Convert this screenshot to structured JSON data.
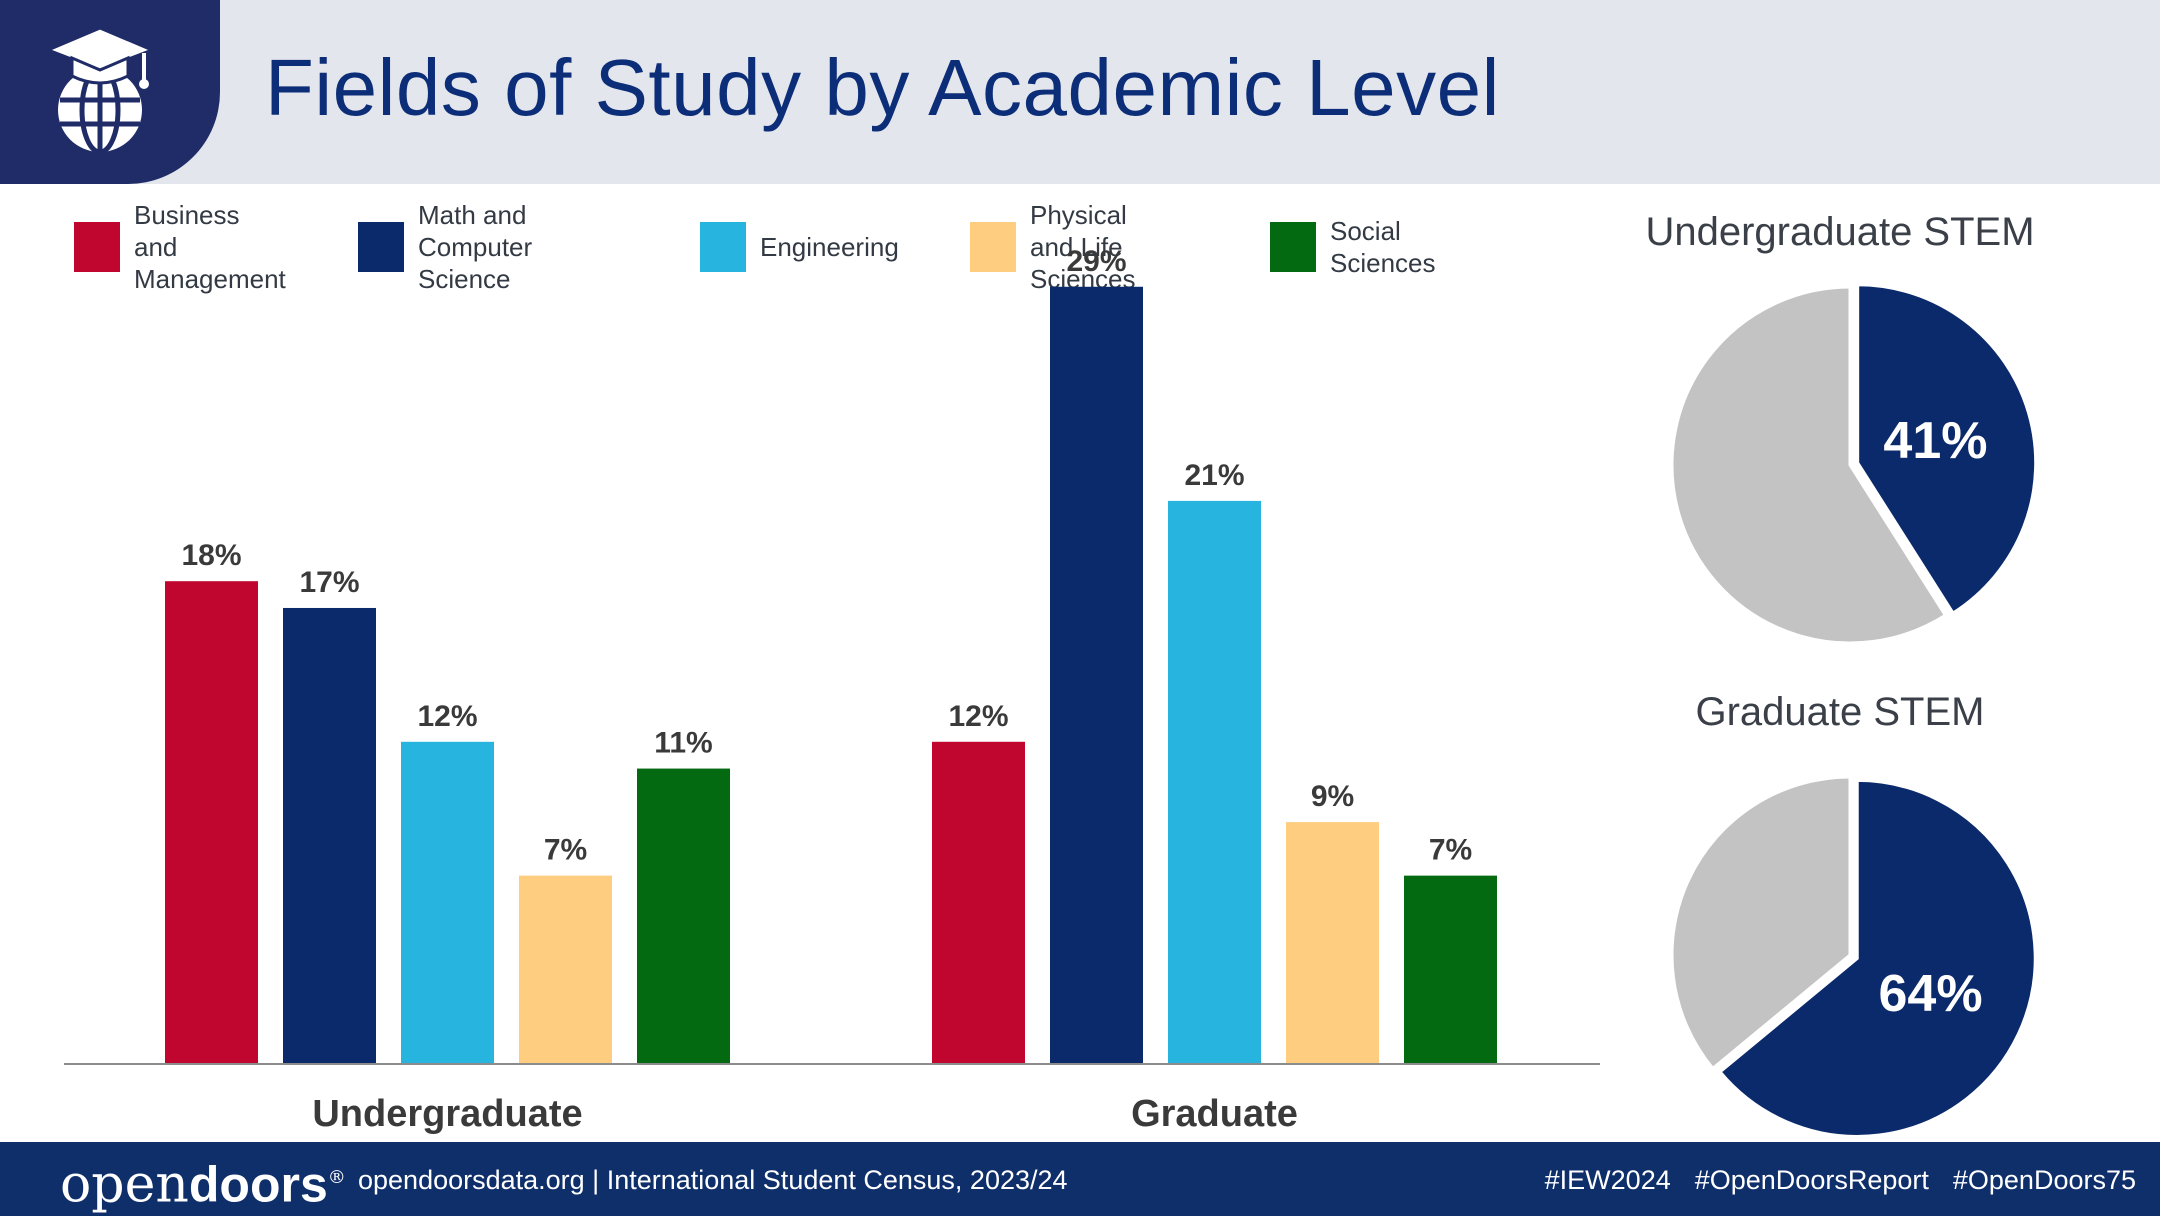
{
  "header": {
    "title": "Fields of Study by Academic Level",
    "logo_icon": "graduation-cap-globe-icon"
  },
  "legend": [
    {
      "label": "Business and\nManagement",
      "color": "#c0052e"
    },
    {
      "label": "Math and Computer\nScience",
      "color": "#0b2a6b"
    },
    {
      "label": "Engineering",
      "color": "#27b5e0"
    },
    {
      "label": "Physical and Life\nSciences",
      "color": "#ffcd80"
    },
    {
      "label": "Social Sciences",
      "color": "#036a12"
    }
  ],
  "chart_data": [
    {
      "type": "bar",
      "title": "",
      "xlabel": "",
      "ylabel": "",
      "ylim": [
        0,
        30
      ],
      "grid": false,
      "legend_position": "top",
      "categories": [
        "Undergraduate",
        "Graduate"
      ],
      "series": [
        {
          "name": "Business and Management",
          "values": [
            18,
            12
          ],
          "labels": [
            "18%",
            "12%"
          ]
        },
        {
          "name": "Math and Computer Science",
          "values": [
            17,
            29
          ],
          "labels": [
            "17%",
            "29%"
          ]
        },
        {
          "name": "Engineering",
          "values": [
            12,
            21
          ],
          "labels": [
            "12%",
            "21%"
          ]
        },
        {
          "name": "Physical and Life Sciences",
          "values": [
            7,
            9
          ],
          "labels": [
            "7%",
            "9%"
          ]
        },
        {
          "name": "Social Sciences",
          "values": [
            11,
            7
          ],
          "labels": [
            "11%",
            "7%"
          ]
        }
      ]
    },
    {
      "type": "pie",
      "title": "Undergraduate STEM",
      "values": [
        41,
        59
      ],
      "label": "41%",
      "colors": [
        "#0b2a6b",
        "#c3c3c3"
      ]
    },
    {
      "type": "pie",
      "title": "Graduate STEM",
      "values": [
        64,
        36
      ],
      "label": "64%",
      "colors": [
        "#0b2a6b",
        "#c3c3c3"
      ]
    }
  ],
  "footer": {
    "brand_open": "open",
    "brand_doors": "doors",
    "brand_reg": "®",
    "source": "opendoorsdata.org  |  International Student Census, 2023/24",
    "hashtags": [
      "#IEW2024",
      "#OpenDoorsReport",
      "#OpenDoors75"
    ]
  }
}
